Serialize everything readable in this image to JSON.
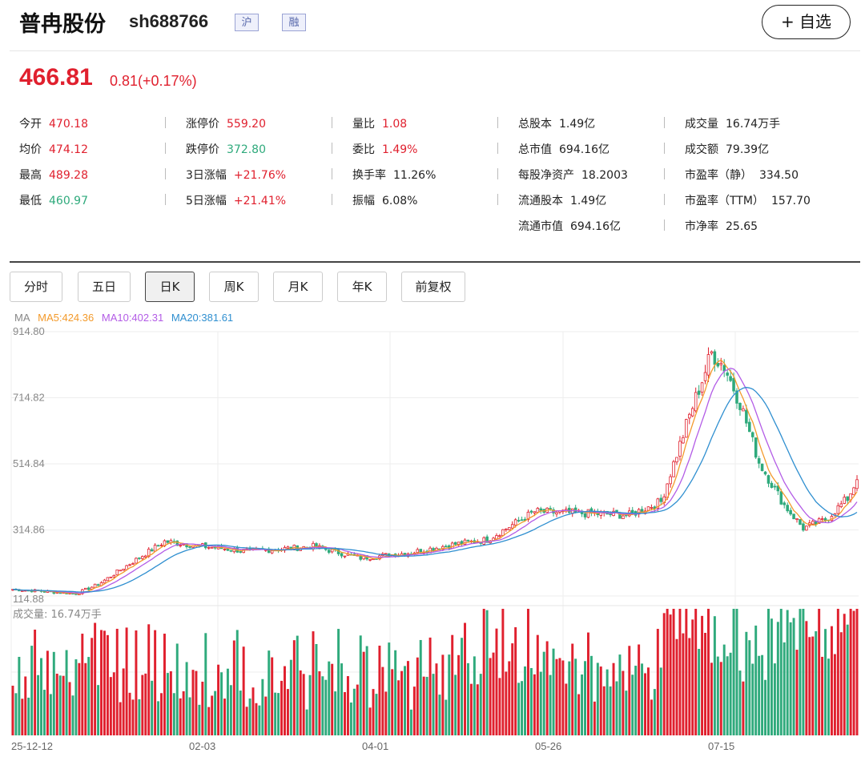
{
  "header": {
    "name": "普冉股份",
    "code": "sh688766",
    "tags": [
      "沪",
      "融"
    ],
    "follow_label": "+ 自选"
  },
  "quote": {
    "price": "466.81",
    "change": "0.81(+0.17%)"
  },
  "stats": [
    {
      "label": "今开",
      "value": "470.18",
      "tone": "red"
    },
    {
      "label": "均价",
      "value": "474.12",
      "tone": "red"
    },
    {
      "label": "最高",
      "value": "489.28",
      "tone": "red"
    },
    {
      "label": "最低",
      "value": "460.97",
      "tone": "green"
    },
    {
      "label": "涨停价",
      "value": "559.20",
      "tone": "red"
    },
    {
      "label": "跌停价",
      "value": "372.80",
      "tone": "green"
    },
    {
      "label": "3日涨幅",
      "value": "+21.76%",
      "tone": "red"
    },
    {
      "label": "5日涨幅",
      "value": "+21.41%",
      "tone": "red"
    },
    {
      "label": "量比",
      "value": "1.08",
      "tone": "red"
    },
    {
      "label": "委比",
      "value": "1.49%",
      "tone": "red"
    },
    {
      "label": "换手率",
      "value": "11.26%",
      "tone": "dark"
    },
    {
      "label": "振幅",
      "value": "6.08%",
      "tone": "dark"
    },
    {
      "label": "总股本",
      "value": "1.49亿",
      "tone": "dark"
    },
    {
      "label": "总市值",
      "value": "694.16亿",
      "tone": "dark"
    },
    {
      "label": "每股净资产",
      "value": "18.2003",
      "tone": "dark"
    },
    {
      "label": "流通股本",
      "value": "1.49亿",
      "tone": "dark"
    },
    {
      "label": "流通市值",
      "value": "694.16亿",
      "tone": "dark"
    },
    {
      "label": "成交量",
      "value": "16.74万手",
      "tone": "dark"
    },
    {
      "label": "成交额",
      "value": "79.39亿",
      "tone": "dark"
    },
    {
      "label": "市盈率（静）",
      "value": "334.50",
      "tone": "dark"
    },
    {
      "label": "市盈率（TTM）",
      "value": "157.70",
      "tone": "dark"
    },
    {
      "label": "市净率",
      "value": "25.65",
      "tone": "dark"
    }
  ],
  "tabs": [
    "分时",
    "五日",
    "日K",
    "周K",
    "月K",
    "年K",
    "前复权"
  ],
  "active_tab": "日K",
  "ma_legend": {
    "prefix": "MA",
    "ma5": "MA5:424.36",
    "ma10": "MA10:402.31",
    "ma20": "MA20:381.61"
  },
  "colors": {
    "up": "#e0202e",
    "down": "#2faa7c",
    "ma5": "#f39a2b",
    "ma10": "#b35ce6",
    "ma20": "#2f8fd0"
  },
  "chart_data": {
    "type": "candlestick",
    "y_ticks": [
      "914.80",
      "714.82",
      "514.84",
      "314.86",
      "114.88"
    ],
    "ylim": [
      114.88,
      914.8
    ],
    "x_ticks": [
      "25-12-12",
      "02-03",
      "04-01",
      "05-26",
      "07-15"
    ],
    "volume_label": "成交量: 16.74万手",
    "price_keypoints": [
      {
        "t": 0,
        "p": 135
      },
      {
        "t": 8,
        "p": 130
      },
      {
        "t": 20,
        "p": 122
      },
      {
        "t": 27,
        "p": 150
      },
      {
        "t": 35,
        "p": 200
      },
      {
        "t": 48,
        "p": 280
      },
      {
        "t": 60,
        "p": 265
      },
      {
        "t": 75,
        "p": 250
      },
      {
        "t": 95,
        "p": 265
      },
      {
        "t": 110,
        "p": 230
      },
      {
        "t": 125,
        "p": 245
      },
      {
        "t": 140,
        "p": 272
      },
      {
        "t": 150,
        "p": 285
      },
      {
        "t": 165,
        "p": 370
      },
      {
        "t": 180,
        "p": 365
      },
      {
        "t": 195,
        "p": 360
      },
      {
        "t": 205,
        "p": 400
      },
      {
        "t": 214,
        "p": 660
      },
      {
        "t": 221,
        "p": 850
      },
      {
        "t": 225,
        "p": 810
      },
      {
        "t": 230,
        "p": 700
      },
      {
        "t": 236,
        "p": 520
      },
      {
        "t": 244,
        "p": 390
      },
      {
        "t": 250,
        "p": 320
      },
      {
        "t": 257,
        "p": 345
      },
      {
        "t": 264,
        "p": 410
      },
      {
        "t": 267,
        "p": 466.81
      }
    ],
    "ma_end_values": {
      "ma5": 424.36,
      "ma10": 402.31,
      "ma20": 381.61
    },
    "last_volume_wan": 16.74
  }
}
